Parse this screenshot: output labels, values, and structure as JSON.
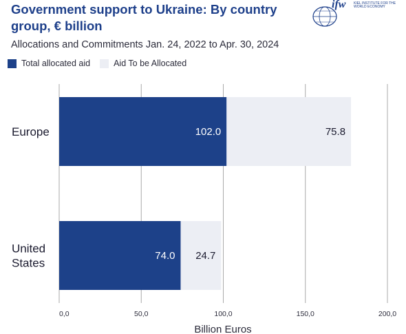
{
  "title": "Government support to Ukraine: By country group, € billion",
  "subtitle": "Allocations and Commitments Jan. 24, 2022 to Apr. 30, 2024",
  "logo": {
    "word": "ifw",
    "text": "KIEL INSTITUTE FOR THE WORLD ECONOMY"
  },
  "colors": {
    "allocated": "#1d4189",
    "to_be_allocated": "#eceef4",
    "grid": "#a9a9a9"
  },
  "chart_data": {
    "type": "bar",
    "orientation": "horizontal",
    "stacked": true,
    "categories": [
      "Europe",
      "United States"
    ],
    "category_lines": [
      [
        "Europe"
      ],
      [
        "United",
        "States"
      ]
    ],
    "series": [
      {
        "name": "Total allocated aid",
        "values": [
          102.0,
          74.0
        ],
        "labels": [
          "102.0",
          "74.0"
        ]
      },
      {
        "name": "Aid To be Allocated",
        "values": [
          75.8,
          24.7
        ],
        "labels": [
          "75.8",
          "24.7"
        ]
      }
    ],
    "xlim": [
      0,
      200
    ],
    "xticks": [
      0,
      50,
      100,
      150,
      200
    ],
    "xtick_labels": [
      "0,0",
      "50,0",
      "100,0",
      "150,0",
      "200,0"
    ],
    "xlabel": "Billion Euros",
    "ylabel": "",
    "grid": true,
    "legend": "top-left"
  }
}
